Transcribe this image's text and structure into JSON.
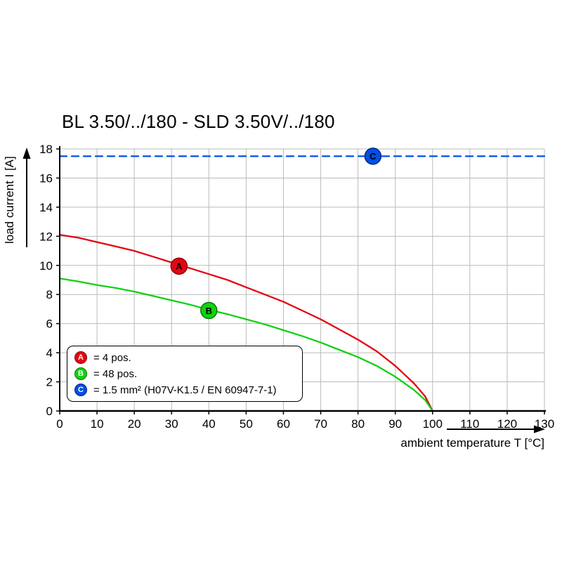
{
  "chart_data": {
    "type": "line",
    "title": "BL 3.50/../180 - SLD 3.50V/../180",
    "xlabel": "ambient temperature T [°C]",
    "ylabel": "load current I [A]",
    "xlim": [
      0,
      130
    ],
    "ylim": [
      0,
      18
    ],
    "xticks": [
      0,
      10,
      20,
      30,
      40,
      50,
      60,
      70,
      80,
      90,
      100,
      110,
      120,
      130
    ],
    "yticks": [
      0,
      2,
      4,
      6,
      8,
      10,
      12,
      14,
      16,
      18
    ],
    "grid": true,
    "grid_color": "#bbbbbb",
    "legend_position": "bottom-left-inside",
    "series": [
      {
        "name": "A",
        "legend": "= 4 pos.",
        "color": "#e30613",
        "marker_stroke": "#8f0008",
        "style": "solid",
        "marker": {
          "x": 32,
          "y": 9.95
        },
        "points": [
          [
            0,
            12.1
          ],
          [
            5,
            11.9
          ],
          [
            10,
            11.6
          ],
          [
            15,
            11.3
          ],
          [
            20,
            11.0
          ],
          [
            25,
            10.6
          ],
          [
            30,
            10.2
          ],
          [
            35,
            9.8
          ],
          [
            40,
            9.4
          ],
          [
            45,
            9.0
          ],
          [
            50,
            8.5
          ],
          [
            55,
            8.0
          ],
          [
            60,
            7.5
          ],
          [
            65,
            6.9
          ],
          [
            70,
            6.3
          ],
          [
            75,
            5.6
          ],
          [
            80,
            4.9
          ],
          [
            85,
            4.1
          ],
          [
            90,
            3.1
          ],
          [
            95,
            1.9
          ],
          [
            98,
            1.0
          ],
          [
            100,
            0
          ]
        ]
      },
      {
        "name": "B",
        "legend": "= 48 pos.",
        "color": "#12d112",
        "marker_stroke": "#007a00",
        "style": "solid",
        "marker": {
          "x": 40,
          "y": 6.9
        },
        "points": [
          [
            0,
            9.1
          ],
          [
            5,
            8.9
          ],
          [
            10,
            8.65
          ],
          [
            15,
            8.45
          ],
          [
            20,
            8.2
          ],
          [
            25,
            7.9
          ],
          [
            30,
            7.6
          ],
          [
            35,
            7.3
          ],
          [
            40,
            6.95
          ],
          [
            45,
            6.65
          ],
          [
            50,
            6.3
          ],
          [
            55,
            5.95
          ],
          [
            60,
            5.55
          ],
          [
            65,
            5.15
          ],
          [
            70,
            4.7
          ],
          [
            75,
            4.2
          ],
          [
            80,
            3.7
          ],
          [
            85,
            3.1
          ],
          [
            90,
            2.35
          ],
          [
            95,
            1.45
          ],
          [
            98,
            0.75
          ],
          [
            100,
            0
          ]
        ]
      },
      {
        "name": "C",
        "legend": "= 1.5 mm² (H07V-K1.5 / EN 60947-7-1)",
        "color": "#004fe6",
        "marker_stroke": "#00267a",
        "style": "dashed",
        "marker": {
          "x": 84,
          "y": 17.5
        },
        "points": [
          [
            0,
            17.5
          ],
          [
            130,
            17.5
          ]
        ]
      }
    ]
  }
}
